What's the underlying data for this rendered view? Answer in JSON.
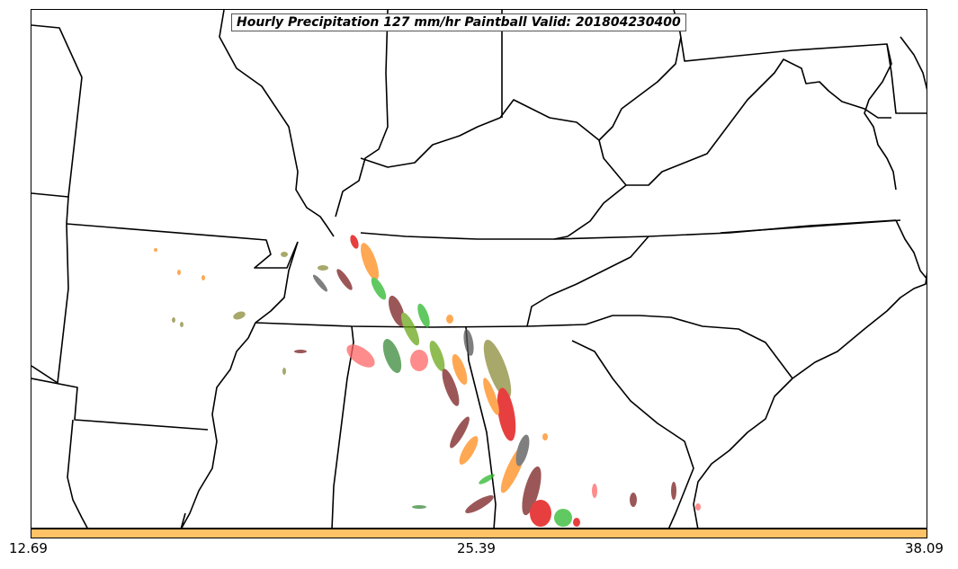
{
  "title": "Hourly Precipitation 127 mm/hr Paintball Valid: 201804230400",
  "colorbar": {
    "color": "#ffc266",
    "ticks": {
      "min": "12.69",
      "mid": "25.39",
      "max": "38.09"
    }
  },
  "colors": {
    "borders": "#000000",
    "members": [
      "#e00000",
      "#ff8c1a",
      "#7a1f1f",
      "#2db82d",
      "#8c8c3a",
      "#6aa81a",
      "#555555",
      "#ff6666",
      "#3a8a3a"
    ]
  }
}
